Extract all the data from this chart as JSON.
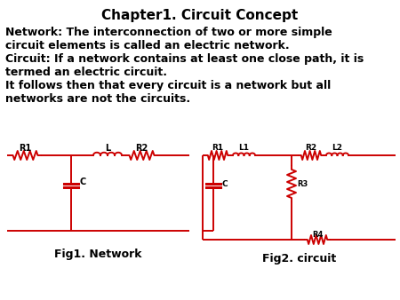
{
  "title": "Chapter1. Circuit Concept",
  "title_fontsize": 11,
  "title_fontweight": "bold",
  "body_lines": [
    "Network: The interconnection of two or more simple",
    "circuit elements is called an electric network.",
    "Circuit: If a network contains at least one close path, it is",
    "termed an electric circuit.",
    "It follows then that every circuit is a network but all",
    "networks are not the circuits."
  ],
  "body_fontsize": 9,
  "body_fontweight": "bold",
  "fig1_label": "Fig1. Network",
  "fig2_label": "Fig2. circuit",
  "circuit_color": "#CC0000",
  "label_color": "#000000",
  "background_color": "#FFFFFF",
  "fig1_label_fontsize": 9,
  "fig2_label_fontsize": 9
}
